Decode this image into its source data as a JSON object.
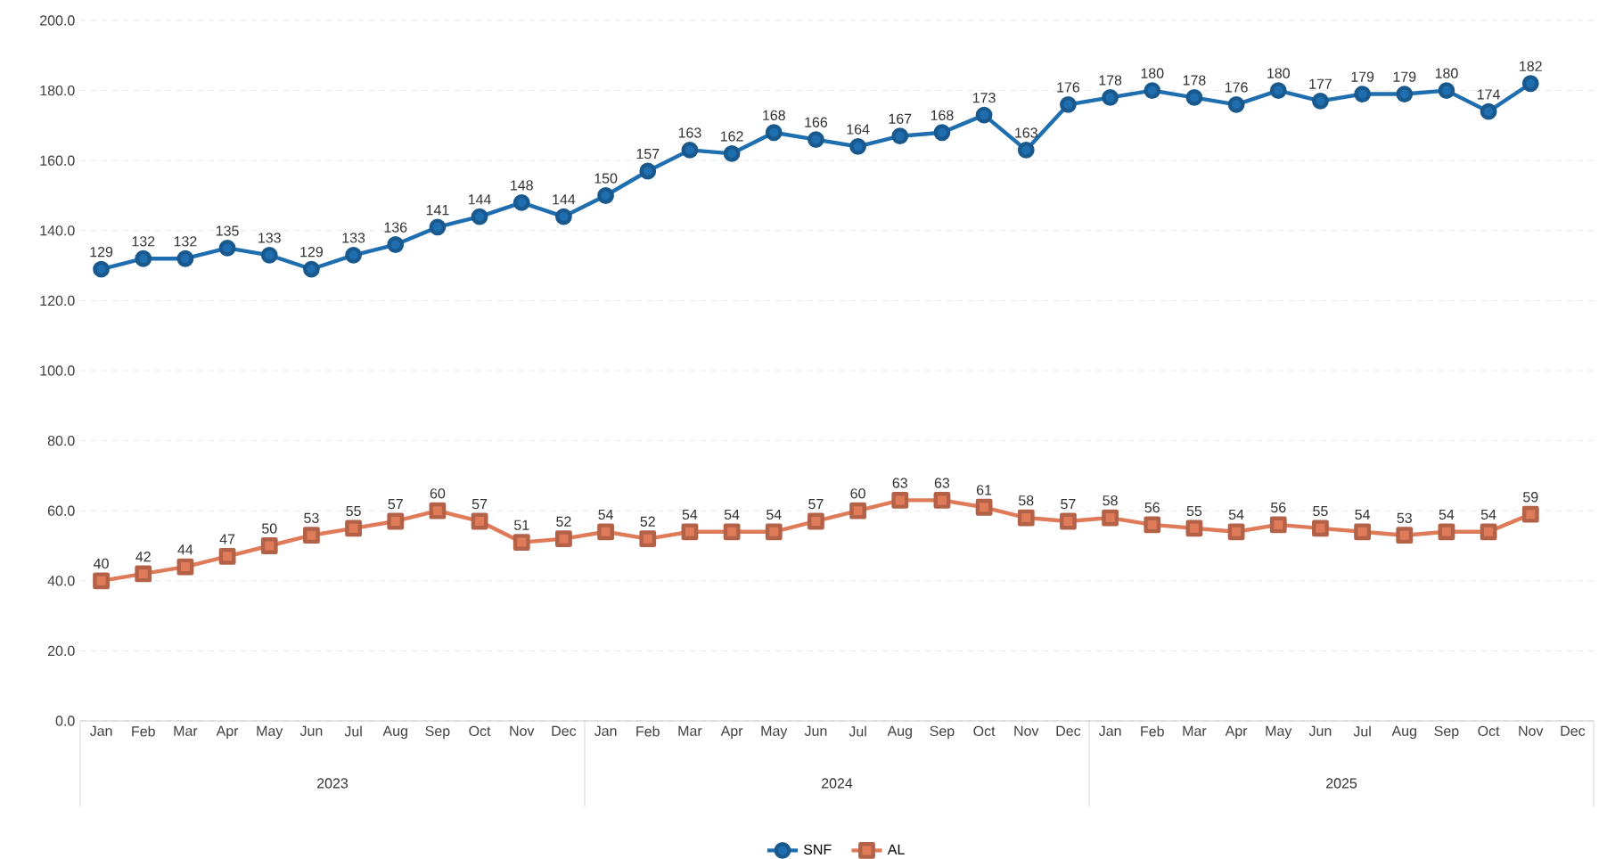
{
  "chart_data": {
    "type": "line",
    "categories": [
      "Jan",
      "Feb",
      "Mar",
      "Apr",
      "May",
      "Jun",
      "Jul",
      "Aug",
      "Sep",
      "Oct",
      "Nov",
      "Dec",
      "Jan",
      "Feb",
      "Mar",
      "Apr",
      "May",
      "Jun",
      "Jul",
      "Aug",
      "Sep",
      "Oct",
      "Nov",
      "Dec",
      "Jan",
      "Feb",
      "Mar",
      "Apr",
      "May",
      "Jun",
      "Jul",
      "Aug",
      "Sep",
      "Oct",
      "Nov",
      "Dec"
    ],
    "series": [
      {
        "name": "SNF",
        "color": "#1f6fb0",
        "marker": "circle",
        "values": [
          129,
          132,
          132,
          135,
          133,
          129,
          133,
          136,
          141,
          144,
          148,
          144,
          150,
          157,
          163,
          162,
          168,
          166,
          164,
          167,
          168,
          173,
          163,
          176,
          178,
          180,
          178,
          176,
          180,
          177,
          179,
          179,
          180,
          174,
          182,
          null
        ]
      },
      {
        "name": "AL",
        "color": "#e07b5a",
        "marker": "square",
        "values": [
          40,
          42,
          44,
          47,
          50,
          53,
          55,
          57,
          60,
          57,
          51,
          52,
          54,
          52,
          54,
          54,
          54,
          57,
          60,
          63,
          63,
          61,
          58,
          57,
          58,
          56,
          55,
          54,
          56,
          55,
          54,
          53,
          54,
          54,
          59,
          null
        ]
      }
    ],
    "annotations": [
      "2023",
      "2024",
      "2025"
    ],
    "ylim": [
      0,
      200
    ],
    "yticks": [
      {
        "value": 0,
        "label": "0.0"
      },
      {
        "value": 20,
        "label": "20.0"
      },
      {
        "value": 40,
        "label": "40.0"
      },
      {
        "value": 60,
        "label": "60.0"
      },
      {
        "value": 80,
        "label": "80.0"
      },
      {
        "value": 100,
        "label": "100.0"
      },
      {
        "value": 120,
        "label": "120.0"
      },
      {
        "value": 140,
        "label": "140.0"
      },
      {
        "value": 160,
        "label": "160.0"
      },
      {
        "value": 180,
        "label": "180.0"
      },
      {
        "value": 200,
        "label": "200.0"
      }
    ],
    "grid": "y",
    "legend": "bottom",
    "data_labels": true,
    "line_style": "solid"
  }
}
